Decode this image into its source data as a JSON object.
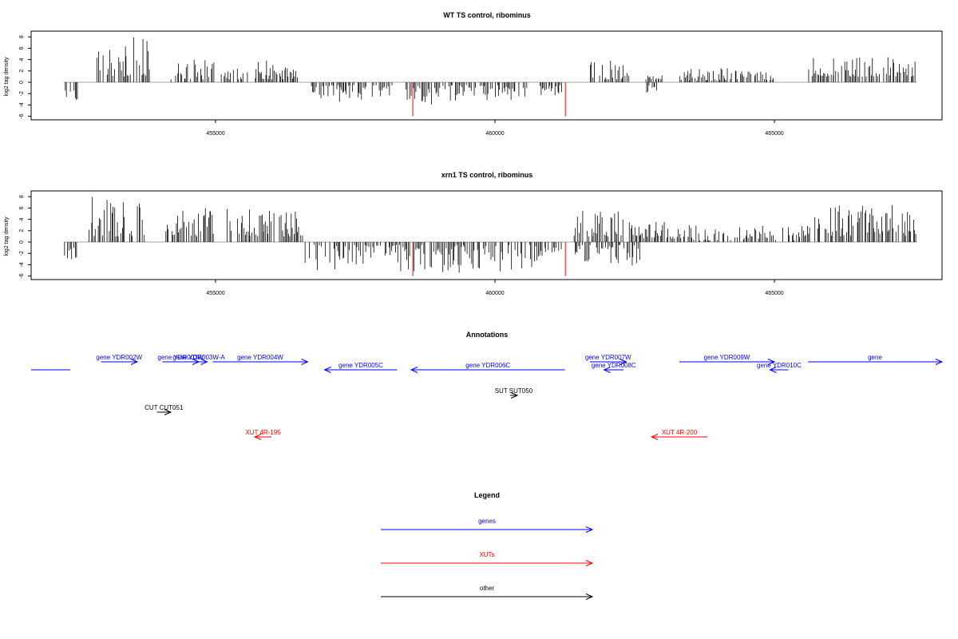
{
  "chart_data": [
    {
      "type": "bar",
      "title": "WT TS control, ribominus",
      "ylabel": "log2 tag density",
      "ylim": [
        -6,
        9
      ],
      "yticks": [
        -6,
        -4,
        -2,
        0,
        2,
        4,
        6,
        8
      ],
      "xlim": [
        451700,
        468000
      ],
      "xticks": [
        455000,
        460000,
        465000
      ],
      "xtick_labels": [
        "455000",
        "460000",
        "465000"
      ],
      "bar_color": "#000000",
      "highlight_color": "#ff0000",
      "highlights": [
        {
          "x": 458530,
          "value": -6
        },
        {
          "x": 461260,
          "value": -6
        }
      ],
      "regions": [
        {
          "start": 452280,
          "end": 452550,
          "sign": -1,
          "lo": 1,
          "hi": 4
        },
        {
          "start": 452850,
          "end": 453850,
          "sign": 1,
          "lo": 1,
          "hi": 8
        },
        {
          "start": 454200,
          "end": 455000,
          "sign": 1,
          "lo": 0.5,
          "hi": 4
        },
        {
          "start": 455100,
          "end": 455600,
          "sign": 1,
          "lo": 0.5,
          "hi": 3
        },
        {
          "start": 455700,
          "end": 456500,
          "sign": 1,
          "lo": 0.5,
          "hi": 4
        },
        {
          "start": 456700,
          "end": 457700,
          "sign": -1,
          "lo": 0.5,
          "hi": 3.5
        },
        {
          "start": 457800,
          "end": 458200,
          "sign": -1,
          "lo": 0.5,
          "hi": 3
        },
        {
          "start": 458400,
          "end": 459300,
          "sign": -1,
          "lo": 0.5,
          "hi": 4
        },
        {
          "start": 459300,
          "end": 460600,
          "sign": -1,
          "lo": 0.5,
          "hi": 3.5
        },
        {
          "start": 460800,
          "end": 461200,
          "sign": -1,
          "lo": 0.5,
          "hi": 2.5
        },
        {
          "start": 461700,
          "end": 462400,
          "sign": 1,
          "lo": 0.5,
          "hi": 4
        },
        {
          "start": 462700,
          "end": 462900,
          "sign": -1,
          "lo": 0.5,
          "hi": 2
        },
        {
          "start": 462700,
          "end": 463000,
          "sign": 1,
          "lo": 0.5,
          "hi": 1.5
        },
        {
          "start": 463300,
          "end": 465000,
          "sign": 1,
          "lo": 0.3,
          "hi": 2.5
        },
        {
          "start": 465600,
          "end": 467550,
          "sign": 1,
          "lo": 1,
          "hi": 4.5
        }
      ]
    },
    {
      "type": "bar",
      "title": "xrn1 TS control, ribominus",
      "ylabel": "log2 tag density",
      "ylim": [
        -6,
        9
      ],
      "yticks": [
        -6,
        -4,
        -2,
        0,
        2,
        4,
        6,
        8
      ],
      "xlim": [
        451700,
        468000
      ],
      "xticks": [
        455000,
        460000,
        465000
      ],
      "xtick_labels": [
        "455000",
        "460000",
        "465000"
      ],
      "bar_color": "#000000",
      "highlight_color": "#ff0000",
      "highlights": [
        {
          "x": 458530,
          "value": -6
        },
        {
          "x": 461260,
          "value": -6
        }
      ],
      "regions": [
        {
          "start": 452280,
          "end": 452550,
          "sign": -1,
          "lo": 1,
          "hi": 4
        },
        {
          "start": 452700,
          "end": 453800,
          "sign": 1,
          "lo": 1,
          "hi": 8
        },
        {
          "start": 454100,
          "end": 455000,
          "sign": 1,
          "lo": 1,
          "hi": 6.5
        },
        {
          "start": 455200,
          "end": 456600,
          "sign": 1,
          "lo": 1,
          "hi": 6
        },
        {
          "start": 456600,
          "end": 457500,
          "sign": -1,
          "lo": 0.5,
          "hi": 5.5
        },
        {
          "start": 457500,
          "end": 458300,
          "sign": -1,
          "lo": 0.5,
          "hi": 4.5
        },
        {
          "start": 458300,
          "end": 461200,
          "sign": -1,
          "lo": 0.5,
          "hi": 5.5
        },
        {
          "start": 461400,
          "end": 462400,
          "sign": 1,
          "lo": 1,
          "hi": 6
        },
        {
          "start": 461400,
          "end": 462600,
          "sign": -1,
          "lo": 0.5,
          "hi": 4.5
        },
        {
          "start": 462400,
          "end": 463200,
          "sign": 1,
          "lo": 0.5,
          "hi": 4
        },
        {
          "start": 463200,
          "end": 465600,
          "sign": 1,
          "lo": 0.3,
          "hi": 3
        },
        {
          "start": 465600,
          "end": 467550,
          "sign": 1,
          "lo": 1,
          "hi": 6.5
        }
      ]
    }
  ],
  "annotations": {
    "title": "Annotations",
    "xlim": [
      451700,
      468000
    ],
    "items": [
      {
        "label": "",
        "start": 451700,
        "end": 452400,
        "dir": "left",
        "color": "#0000ff",
        "row": 1
      },
      {
        "label": "gene YDR002W",
        "start": 452950,
        "end": 453600,
        "dir": "right",
        "color": "#0000ff",
        "row": 0
      },
      {
        "label": "gene YDR003W",
        "start": 454050,
        "end": 454700,
        "dir": "right",
        "color": "#0000ff",
        "row": 0
      },
      {
        "label": "gene YDR003W-A",
        "start": 454550,
        "end": 454850,
        "dir": "right",
        "color": "#0000ff",
        "row": 0
      },
      {
        "label": "gene YDR004W",
        "start": 454950,
        "end": 456650,
        "dir": "right",
        "color": "#0000ff",
        "row": 0
      },
      {
        "label": "gene YDR005C",
        "start": 456950,
        "end": 458250,
        "dir": "left",
        "color": "#0000ff",
        "row": 1
      },
      {
        "label": "gene YDR006C",
        "start": 458500,
        "end": 461250,
        "dir": "left",
        "color": "#0000ff",
        "row": 1
      },
      {
        "label": "gene YDR007W",
        "start": 461700,
        "end": 462350,
        "dir": "right",
        "color": "#0000ff",
        "row": 0
      },
      {
        "label": "gene YDR008C",
        "start": 461950,
        "end": 462300,
        "dir": "left",
        "color": "#0000ff",
        "row": 1
      },
      {
        "label": "gene YDR009W",
        "start": 463300,
        "end": 465000,
        "dir": "right",
        "color": "#0000ff",
        "row": 0
      },
      {
        "label": "gene YDR010C",
        "start": 464920,
        "end": 465250,
        "dir": "left",
        "color": "#0000ff",
        "row": 1
      },
      {
        "label": "gene",
        "start": 465600,
        "end": 468000,
        "dir": "right",
        "color": "#0000ff",
        "row": 0
      },
      {
        "label": "SUT SUT050",
        "start": 460270,
        "end": 460400,
        "dir": "right",
        "color": "#000000",
        "row": 2
      },
      {
        "label": "CUT CUT051",
        "start": 453950,
        "end": 454200,
        "dir": "right",
        "color": "#000000",
        "row": 3
      },
      {
        "label": "XUT 4R-195",
        "start": 455700,
        "end": 456000,
        "dir": "left",
        "color": "#ff0000",
        "row": 4
      },
      {
        "label": "XUT 4R-200",
        "start": 462800,
        "end": 463800,
        "dir": "left",
        "color": "#ff0000",
        "row": 4
      }
    ]
  },
  "legend": {
    "title": "Legend",
    "items": [
      {
        "label": "genes",
        "color": "#0000ff"
      },
      {
        "label": "XUTs",
        "color": "#ff0000"
      },
      {
        "label": "other",
        "color": "#000000"
      }
    ]
  }
}
